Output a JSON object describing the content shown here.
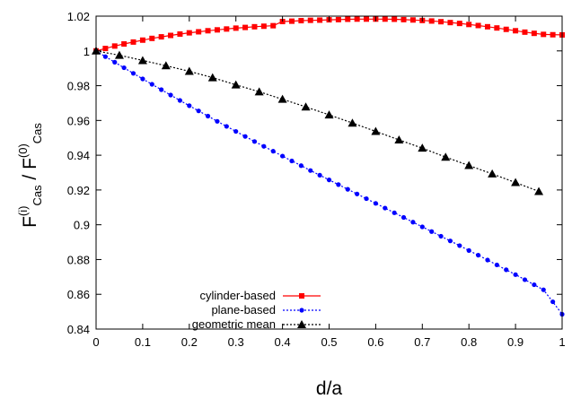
{
  "chart_data": {
    "type": "line",
    "xlabel": "d/a",
    "ylabel": {
      "base1": "F",
      "sup1": "(i)",
      "sub1": "Cas",
      "sep": " / ",
      "base2": "F",
      "sup2": "(0)",
      "sub2": "Cas"
    },
    "xlim": [
      0,
      1
    ],
    "ylim": [
      0.84,
      1.02
    ],
    "x_ticks": [
      "0",
      "0.1",
      "0.2",
      "0.3",
      "0.4",
      "0.5",
      "0.6",
      "0.7",
      "0.8",
      "0.9",
      "1"
    ],
    "y_ticks": [
      "0.84",
      "0.86",
      "0.88",
      "0.9",
      "0.92",
      "0.94",
      "0.96",
      "0.98",
      "1",
      "1.02"
    ],
    "x_tick_values": [
      0,
      0.1,
      0.2,
      0.3,
      0.4,
      0.5,
      0.6,
      0.7,
      0.8,
      0.9,
      1
    ],
    "y_tick_values": [
      0.84,
      0.86,
      0.88,
      0.9,
      0.92,
      0.94,
      0.96,
      0.98,
      1,
      1.02
    ],
    "grid": false,
    "legend_position": "bottom-left",
    "series": [
      {
        "name": "cylinder-based",
        "color": "#ff0000",
        "marker": "square",
        "line_style": "solid",
        "x": [
          0,
          0.02,
          0.04,
          0.06,
          0.08,
          0.1,
          0.12,
          0.14,
          0.16,
          0.18,
          0.2,
          0.22,
          0.24,
          0.26,
          0.28,
          0.3,
          0.32,
          0.34,
          0.36,
          0.38,
          0.4,
          0.42,
          0.44,
          0.46,
          0.48,
          0.5,
          0.52,
          0.54,
          0.56,
          0.58,
          0.6,
          0.62,
          0.64,
          0.66,
          0.68,
          0.7,
          0.72,
          0.74,
          0.76,
          0.78,
          0.8,
          0.82,
          0.84,
          0.86,
          0.88,
          0.9,
          0.92,
          0.94,
          0.96,
          0.98,
          1
        ],
        "y": [
          1.0,
          1.0014,
          1.0028,
          1.004,
          1.0051,
          1.0062,
          1.0072,
          1.0081,
          1.0089,
          1.0097,
          1.0104,
          1.011,
          1.0116,
          1.0121,
          1.0126,
          1.0131,
          1.0135,
          1.0139,
          1.0142,
          1.0145,
          1.0169,
          1.0171,
          1.0174,
          1.0176,
          1.0177,
          1.0179,
          1.018,
          1.0182,
          1.0183,
          1.0183,
          1.0183,
          1.0183,
          1.0182,
          1.018,
          1.0178,
          1.0175,
          1.0172,
          1.0168,
          1.0163,
          1.0158,
          1.0152,
          1.0146,
          1.0139,
          1.0132,
          1.0124,
          1.0116,
          1.0108,
          1.0101,
          1.0095,
          1.0093,
          1.0092
        ]
      },
      {
        "name": "plane-based",
        "color": "#0000ff",
        "marker": "circle",
        "line_style": "dotted",
        "x": [
          0,
          0.02,
          0.04,
          0.06,
          0.08,
          0.1,
          0.12,
          0.14,
          0.16,
          0.18,
          0.2,
          0.22,
          0.24,
          0.26,
          0.28,
          0.3,
          0.32,
          0.34,
          0.36,
          0.38,
          0.4,
          0.42,
          0.44,
          0.46,
          0.48,
          0.5,
          0.52,
          0.54,
          0.56,
          0.58,
          0.6,
          0.62,
          0.64,
          0.66,
          0.68,
          0.7,
          0.72,
          0.74,
          0.76,
          0.78,
          0.8,
          0.82,
          0.84,
          0.86,
          0.88,
          0.9,
          0.92,
          0.94,
          0.96,
          0.98,
          1
        ],
        "y": [
          1.0,
          0.9967,
          0.9935,
          0.9903,
          0.9871,
          0.9839,
          0.9808,
          0.9777,
          0.9746,
          0.9715,
          0.9685,
          0.9655,
          0.9625,
          0.9595,
          0.9566,
          0.9537,
          0.9508,
          0.9479,
          0.9451,
          0.9423,
          0.9395,
          0.9367,
          0.934,
          0.9312,
          0.9285,
          0.9258,
          0.9231,
          0.9204,
          0.9177,
          0.915,
          0.9123,
          0.9096,
          0.9069,
          0.9042,
          0.9015,
          0.8988,
          0.8961,
          0.8934,
          0.8907,
          0.888,
          0.8852,
          0.8825,
          0.8797,
          0.8769,
          0.8741,
          0.8713,
          0.8684,
          0.8655,
          0.8626,
          0.8557,
          0.8485
        ]
      },
      {
        "name": "geometric mean",
        "color": "#000000",
        "marker": "triangle",
        "line_style": "dotted",
        "x": [
          0,
          0.05,
          0.1,
          0.15,
          0.2,
          0.25,
          0.3,
          0.35,
          0.4,
          0.45,
          0.5,
          0.55,
          0.6,
          0.65,
          0.7,
          0.75,
          0.8,
          0.85,
          0.9,
          0.95
        ],
        "y": [
          1.0,
          0.9975,
          0.9945,
          0.9915,
          0.9883,
          0.9846,
          0.9805,
          0.9765,
          0.9722,
          0.9678,
          0.9632,
          0.9585,
          0.9537,
          0.9488,
          0.9441,
          0.9389,
          0.9341,
          0.9293,
          0.9243,
          0.9192
        ]
      }
    ]
  }
}
